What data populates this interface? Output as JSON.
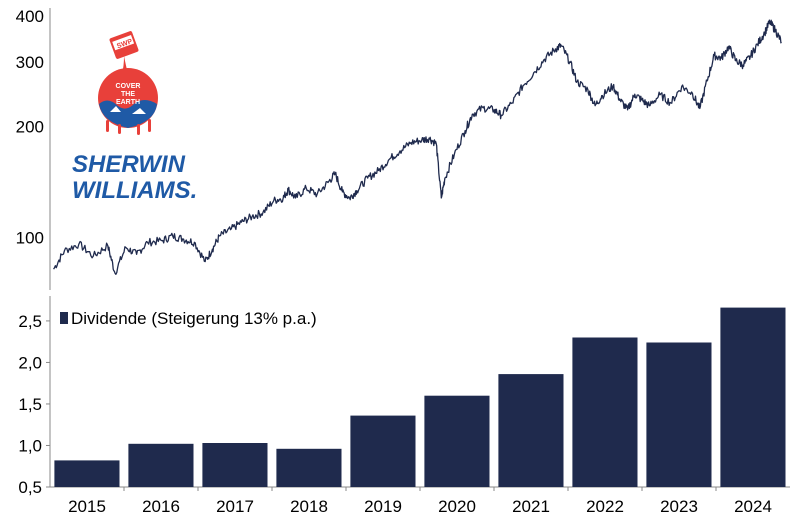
{
  "brand": {
    "name_line1": "SHERWIN",
    "name_line2": "WILLIAMS.",
    "can_label": "SWP",
    "globe_text": [
      "COVER",
      "THE",
      "EARTH"
    ],
    "blue": "#1f5aa6",
    "red": "#e8403a"
  },
  "colors": {
    "series": "#1f2a4d",
    "axis": "#888888"
  },
  "chart_data": [
    {
      "type": "line",
      "scale": "log",
      "ylim": [
        72,
        420
      ],
      "yticks": [
        {
          "value": 100,
          "label": "100"
        },
        {
          "value": 200,
          "label": "200"
        },
        {
          "value": 300,
          "label": "300"
        },
        {
          "value": 400,
          "label": "400"
        }
      ],
      "xlim": [
        2014.75,
        2025.0
      ],
      "grid": false,
      "series": [
        {
          "points": [
            [
              2014.8,
              82
            ],
            [
              2014.95,
              92
            ],
            [
              2015.15,
              96
            ],
            [
              2015.35,
              89
            ],
            [
              2015.55,
              95
            ],
            [
              2015.65,
              80
            ],
            [
              2015.8,
              94
            ],
            [
              2015.95,
              90
            ],
            [
              2016.1,
              97
            ],
            [
              2016.3,
              98
            ],
            [
              2016.45,
              101
            ],
            [
              2016.6,
              99
            ],
            [
              2016.75,
              97
            ],
            [
              2016.9,
              86
            ],
            [
              2017.0,
              93
            ],
            [
              2017.1,
              101
            ],
            [
              2017.25,
              105
            ],
            [
              2017.4,
              110
            ],
            [
              2017.55,
              114
            ],
            [
              2017.7,
              117
            ],
            [
              2017.85,
              126
            ],
            [
              2017.98,
              128
            ],
            [
              2018.05,
              135
            ],
            [
              2018.15,
              128
            ],
            [
              2018.3,
              136
            ],
            [
              2018.45,
              131
            ],
            [
              2018.6,
              141
            ],
            [
              2018.7,
              149
            ],
            [
              2018.8,
              133
            ],
            [
              2018.9,
              128
            ],
            [
              2019.0,
              134
            ],
            [
              2019.15,
              145
            ],
            [
              2019.3,
              152
            ],
            [
              2019.45,
              163
            ],
            [
              2019.6,
              172
            ],
            [
              2019.75,
              181
            ],
            [
              2019.9,
              184
            ],
            [
              2020.0,
              186
            ],
            [
              2020.1,
              180
            ],
            [
              2020.17,
              128
            ],
            [
              2020.22,
              145
            ],
            [
              2020.35,
              168
            ],
            [
              2020.5,
              195
            ],
            [
              2020.6,
              216
            ],
            [
              2020.75,
              225
            ],
            [
              2020.9,
              222
            ],
            [
              2021.0,
              215
            ],
            [
              2021.15,
              232
            ],
            [
              2021.3,
              258
            ],
            [
              2021.45,
              280
            ],
            [
              2021.6,
              305
            ],
            [
              2021.75,
              325
            ],
            [
              2021.83,
              332
            ],
            [
              2021.95,
              300
            ],
            [
              2022.05,
              265
            ],
            [
              2022.2,
              252
            ],
            [
              2022.3,
              228
            ],
            [
              2022.4,
              243
            ],
            [
              2022.55,
              258
            ],
            [
              2022.65,
              236
            ],
            [
              2022.75,
              222
            ],
            [
              2022.85,
              245
            ],
            [
              2022.95,
              236
            ],
            [
              2023.05,
              228
            ],
            [
              2023.2,
              244
            ],
            [
              2023.35,
              232
            ],
            [
              2023.5,
              257
            ],
            [
              2023.65,
              246
            ],
            [
              2023.75,
              224
            ],
            [
              2023.85,
              266
            ],
            [
              2023.95,
              312
            ],
            [
              2024.05,
              307
            ],
            [
              2024.15,
              330
            ],
            [
              2024.25,
              302
            ],
            [
              2024.35,
              294
            ],
            [
              2024.45,
              310
            ],
            [
              2024.55,
              335
            ],
            [
              2024.65,
              360
            ],
            [
              2024.72,
              385
            ],
            [
              2024.8,
              365
            ],
            [
              2024.88,
              340
            ]
          ]
        }
      ]
    },
    {
      "type": "bar",
      "categories": [
        "2015",
        "2016",
        "2017",
        "2018",
        "2019",
        "2020",
        "2021",
        "2022",
        "2023",
        "2024"
      ],
      "series": [
        {
          "name": "Dividende",
          "values": [
            0.82,
            1.02,
            1.03,
            0.96,
            1.36,
            1.6,
            1.86,
            2.3,
            2.24,
            2.66
          ]
        }
      ],
      "ylim": [
        0.5,
        2.8
      ],
      "yticks": [
        {
          "value": 0.5,
          "label": "0,5"
        },
        {
          "value": 1.0,
          "label": "1,0"
        },
        {
          "value": 1.5,
          "label": "1,5"
        },
        {
          "value": 2.0,
          "label": "2,0"
        },
        {
          "value": 2.5,
          "label": "2,5"
        }
      ],
      "legend": {
        "label": "Dividende (Steigerung 13% p.a.)",
        "placement": "top-left"
      },
      "grid": false
    }
  ]
}
